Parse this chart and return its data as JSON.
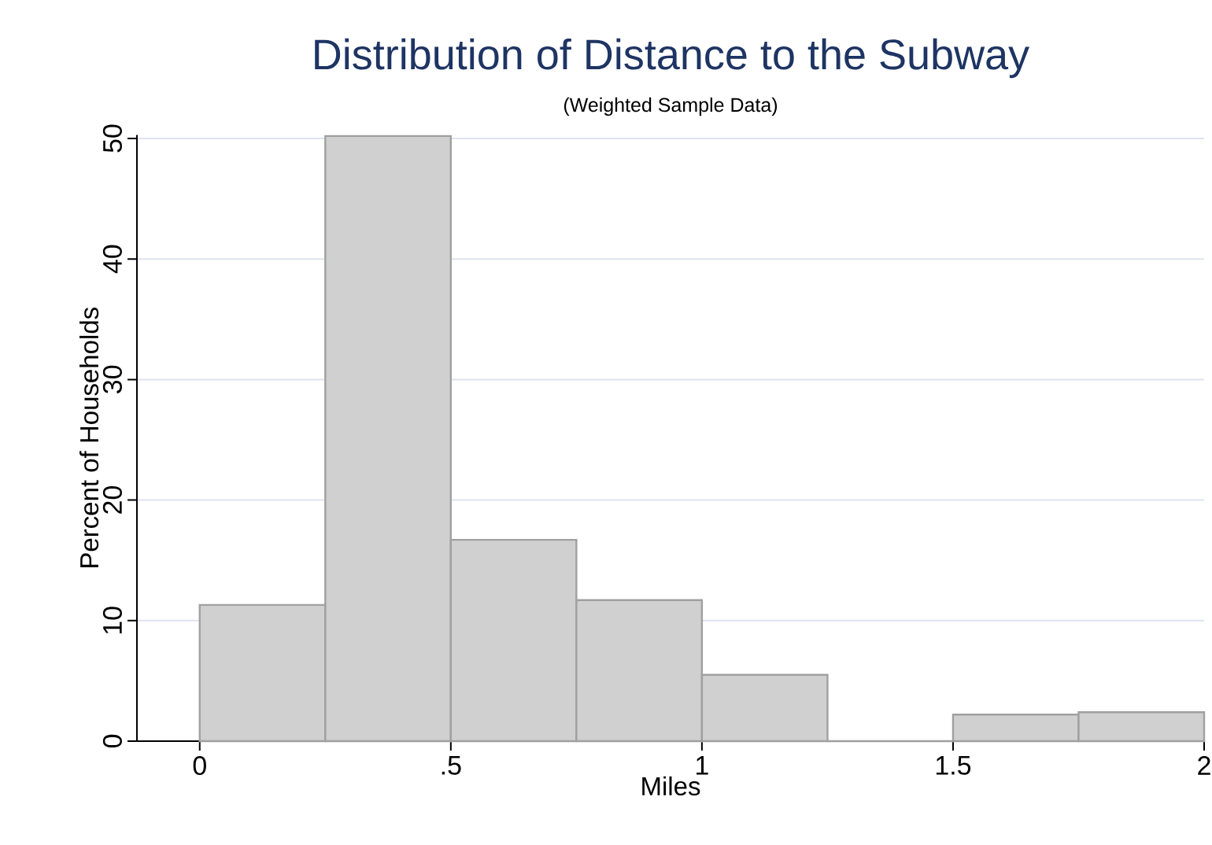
{
  "chart_data": {
    "type": "histogram",
    "title": "Distribution of Distance to the Subway",
    "subtitle": "(Weighted Sample Data)",
    "xlabel": "Miles",
    "ylabel": "Percent of Households",
    "bins": [
      0,
      0.25,
      0.5,
      0.75,
      1,
      1.25,
      1.5,
      1.75,
      2
    ],
    "values": [
      11.3,
      50.2,
      16.7,
      11.7,
      5.5,
      0,
      2.2,
      2.4
    ],
    "color": "#d0d0d0",
    "xlim": [
      -0.125,
      2
    ],
    "xticks": [
      0,
      {
        "value": 0.5,
        "label": ".5"
      },
      1,
      1.5,
      2
    ],
    "ylim": [
      0,
      50.3
    ],
    "yticks": [
      0,
      10,
      20,
      30,
      40,
      50
    ],
    "grid": "y"
  }
}
